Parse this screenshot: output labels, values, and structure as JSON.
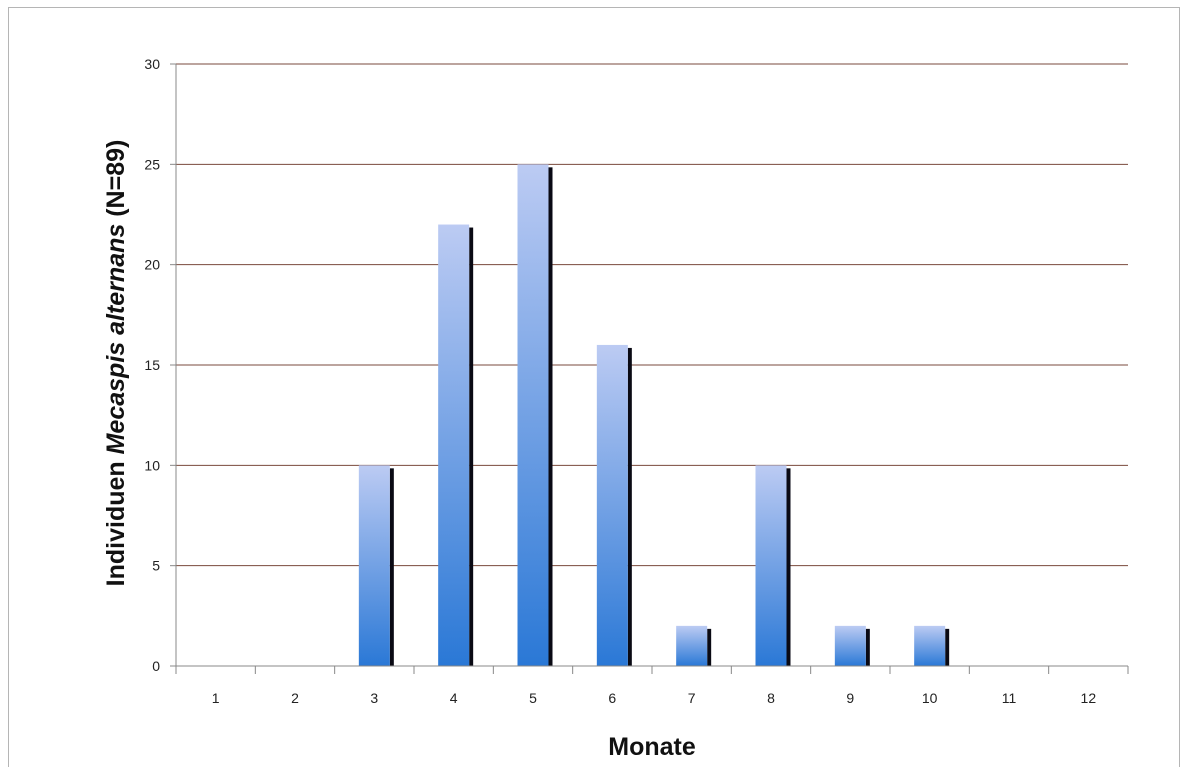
{
  "chart_data": {
    "type": "bar",
    "title": "",
    "xlabel": "Monate",
    "ylabel": {
      "prefix": "Individuen ",
      "species": "Mecaspis alternans",
      "suffix": " (N=89)"
    },
    "categories": [
      "1",
      "2",
      "3",
      "4",
      "5",
      "6",
      "7",
      "8",
      "9",
      "10",
      "11",
      "12"
    ],
    "values": [
      0,
      0,
      10,
      22,
      25,
      16,
      2,
      10,
      2,
      2,
      0,
      0
    ],
    "ylim": [
      0,
      30
    ],
    "yticks": [
      0,
      5,
      10,
      15,
      20,
      25,
      30
    ],
    "grid": true,
    "legend": "none",
    "colors": {
      "bar_top": "#bccbf3",
      "bar_bottom": "#2a78d6",
      "bar_shadow": "#0a0a14",
      "gridline": "#7a4a3c",
      "axis": "#888888"
    }
  }
}
